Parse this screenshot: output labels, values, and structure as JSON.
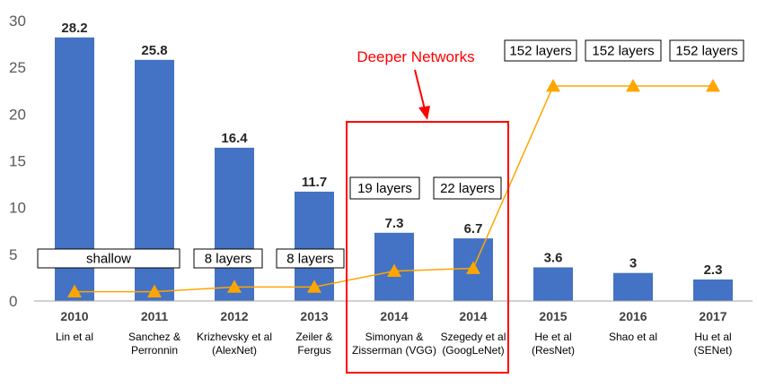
{
  "chart_data": {
    "type": "bar",
    "ylim": [
      0,
      30
    ],
    "yticks": [
      0,
      5,
      10,
      15,
      20,
      25,
      30
    ],
    "categories": [
      {
        "year": "2010",
        "name": [
          "Lin et al"
        ]
      },
      {
        "year": "2011",
        "name": [
          "Sanchez &",
          "Perronnin"
        ]
      },
      {
        "year": "2012",
        "name": [
          "Krizhevsky et al",
          "(AlexNet)"
        ]
      },
      {
        "year": "2013",
        "name": [
          "Zeiler &",
          "Fergus"
        ]
      },
      {
        "year": "2014",
        "name": [
          "Simonyan &",
          "Zisserman (VGG)"
        ]
      },
      {
        "year": "2014",
        "name": [
          "Szegedy et al",
          "(GoogLeNet)"
        ]
      },
      {
        "year": "2015",
        "name": [
          "He et al",
          "(ResNet)"
        ]
      },
      {
        "year": "2016",
        "name": [
          "Shao et al"
        ]
      },
      {
        "year": "2017",
        "name": [
          "Hu et al",
          "(SENet)"
        ]
      }
    ],
    "values": [
      28.2,
      25.8,
      16.4,
      11.7,
      7.3,
      6.7,
      3.6,
      3,
      2.3
    ],
    "value_labels": [
      "28.2",
      "25.8",
      "16.4",
      "11.7",
      "7.3",
      "6.7",
      "3.6",
      "3",
      "2.3"
    ],
    "depth_line": [
      1.0,
      1.0,
      1.5,
      1.5,
      3.2,
      3.5,
      23.0,
      23.0,
      23.0
    ],
    "layer_labels": [
      "shallow",
      "8 layers",
      "8 layers",
      "19 layers",
      "22 layers",
      "152 layers",
      "152 layers",
      "152 layers"
    ],
    "annotation": "Deeper Networks",
    "colors": {
      "bar": "#4472c4",
      "line": "#ffa500",
      "marker": "#ffa500",
      "highlight": "#ff0000",
      "axis": "#a6a6a6"
    }
  }
}
